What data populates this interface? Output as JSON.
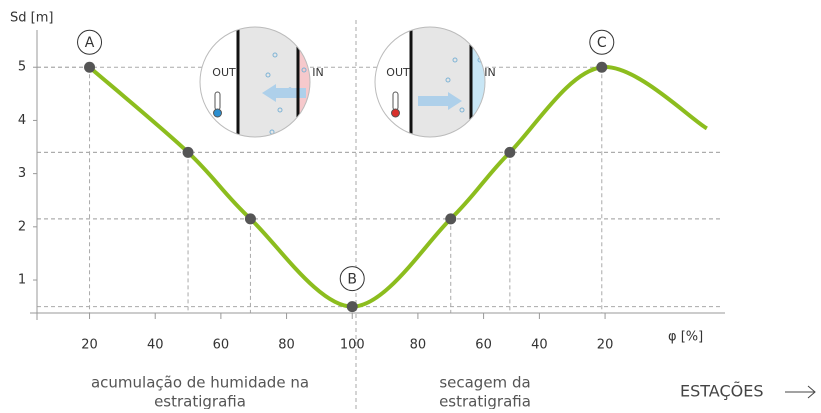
{
  "chart_data": {
    "type": "line",
    "y_label": "Sd [m]",
    "x_label": "φ [%]",
    "x": [
      20,
      50,
      69,
      100,
      130,
      148,
      176,
      208
    ],
    "values": [
      5,
      3.4,
      2.15,
      0.5,
      2.15,
      3.4,
      5,
      3.85
    ],
    "markers": [
      true,
      true,
      true,
      true,
      true,
      true,
      true,
      false
    ],
    "point_labels": [
      "A",
      null,
      null,
      "B",
      null,
      null,
      "C",
      null
    ],
    "color": "#8cbd1e",
    "marker_color": "#555555",
    "xlim": [
      4,
      212
    ],
    "ylim": [
      0.38,
      5.7
    ],
    "xticks": [
      20,
      40,
      60,
      80,
      100,
      {
        "value": 120,
        "label": "80"
      },
      {
        "value": 140,
        "label": "60"
      },
      {
        "value": 157,
        "label": "40"
      },
      {
        "value": 177,
        "label": "20"
      }
    ],
    "yticks": [
      1,
      2,
      3,
      4,
      5
    ],
    "annotations": {
      "left_caption": [
        "acumulação de humidade na",
        "estratigrafia"
      ],
      "right_caption": [
        "secagem da",
        "estratigrafia"
      ],
      "seasons": "ESTAÇÕES",
      "inset_left": {
        "out": "OUT",
        "in": "IN"
      },
      "inset_right": {
        "out": "OUT",
        "in": "IN"
      }
    }
  }
}
